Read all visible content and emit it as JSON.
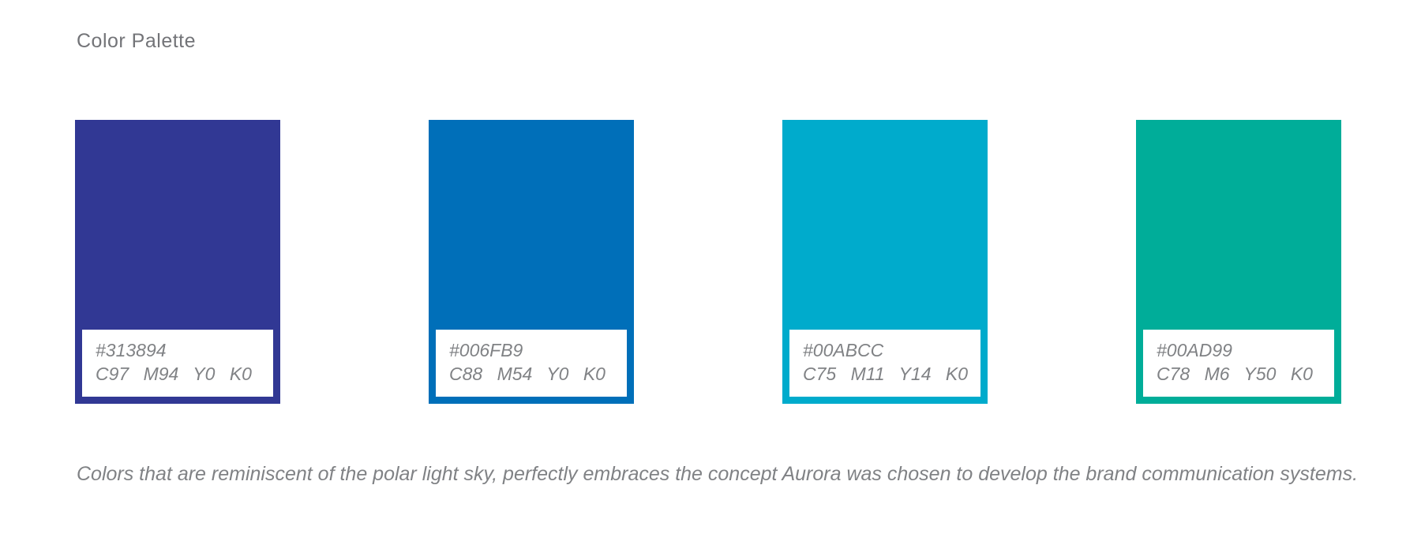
{
  "page": {
    "title": "Color Palette",
    "caption": "Colors that are reminiscent of the polar light sky, perfectly embraces the concept Aurora was chosen to develop the brand communication systems.",
    "background": "#ffffff"
  },
  "styles": {
    "title_text_color": "#737478",
    "label_text_color": "#808285"
  },
  "swatches": [
    {
      "hex": "#313894",
      "cmyk": "C97 M94 Y0 K0"
    },
    {
      "hex": "#006FB9",
      "cmyk": "C88 M54 Y0 K0"
    },
    {
      "hex": "#00ABCC",
      "cmyk": "C75 M11 Y14 K0"
    },
    {
      "hex": "#00AD99",
      "cmyk": "C78 M6 Y50 K0"
    }
  ]
}
